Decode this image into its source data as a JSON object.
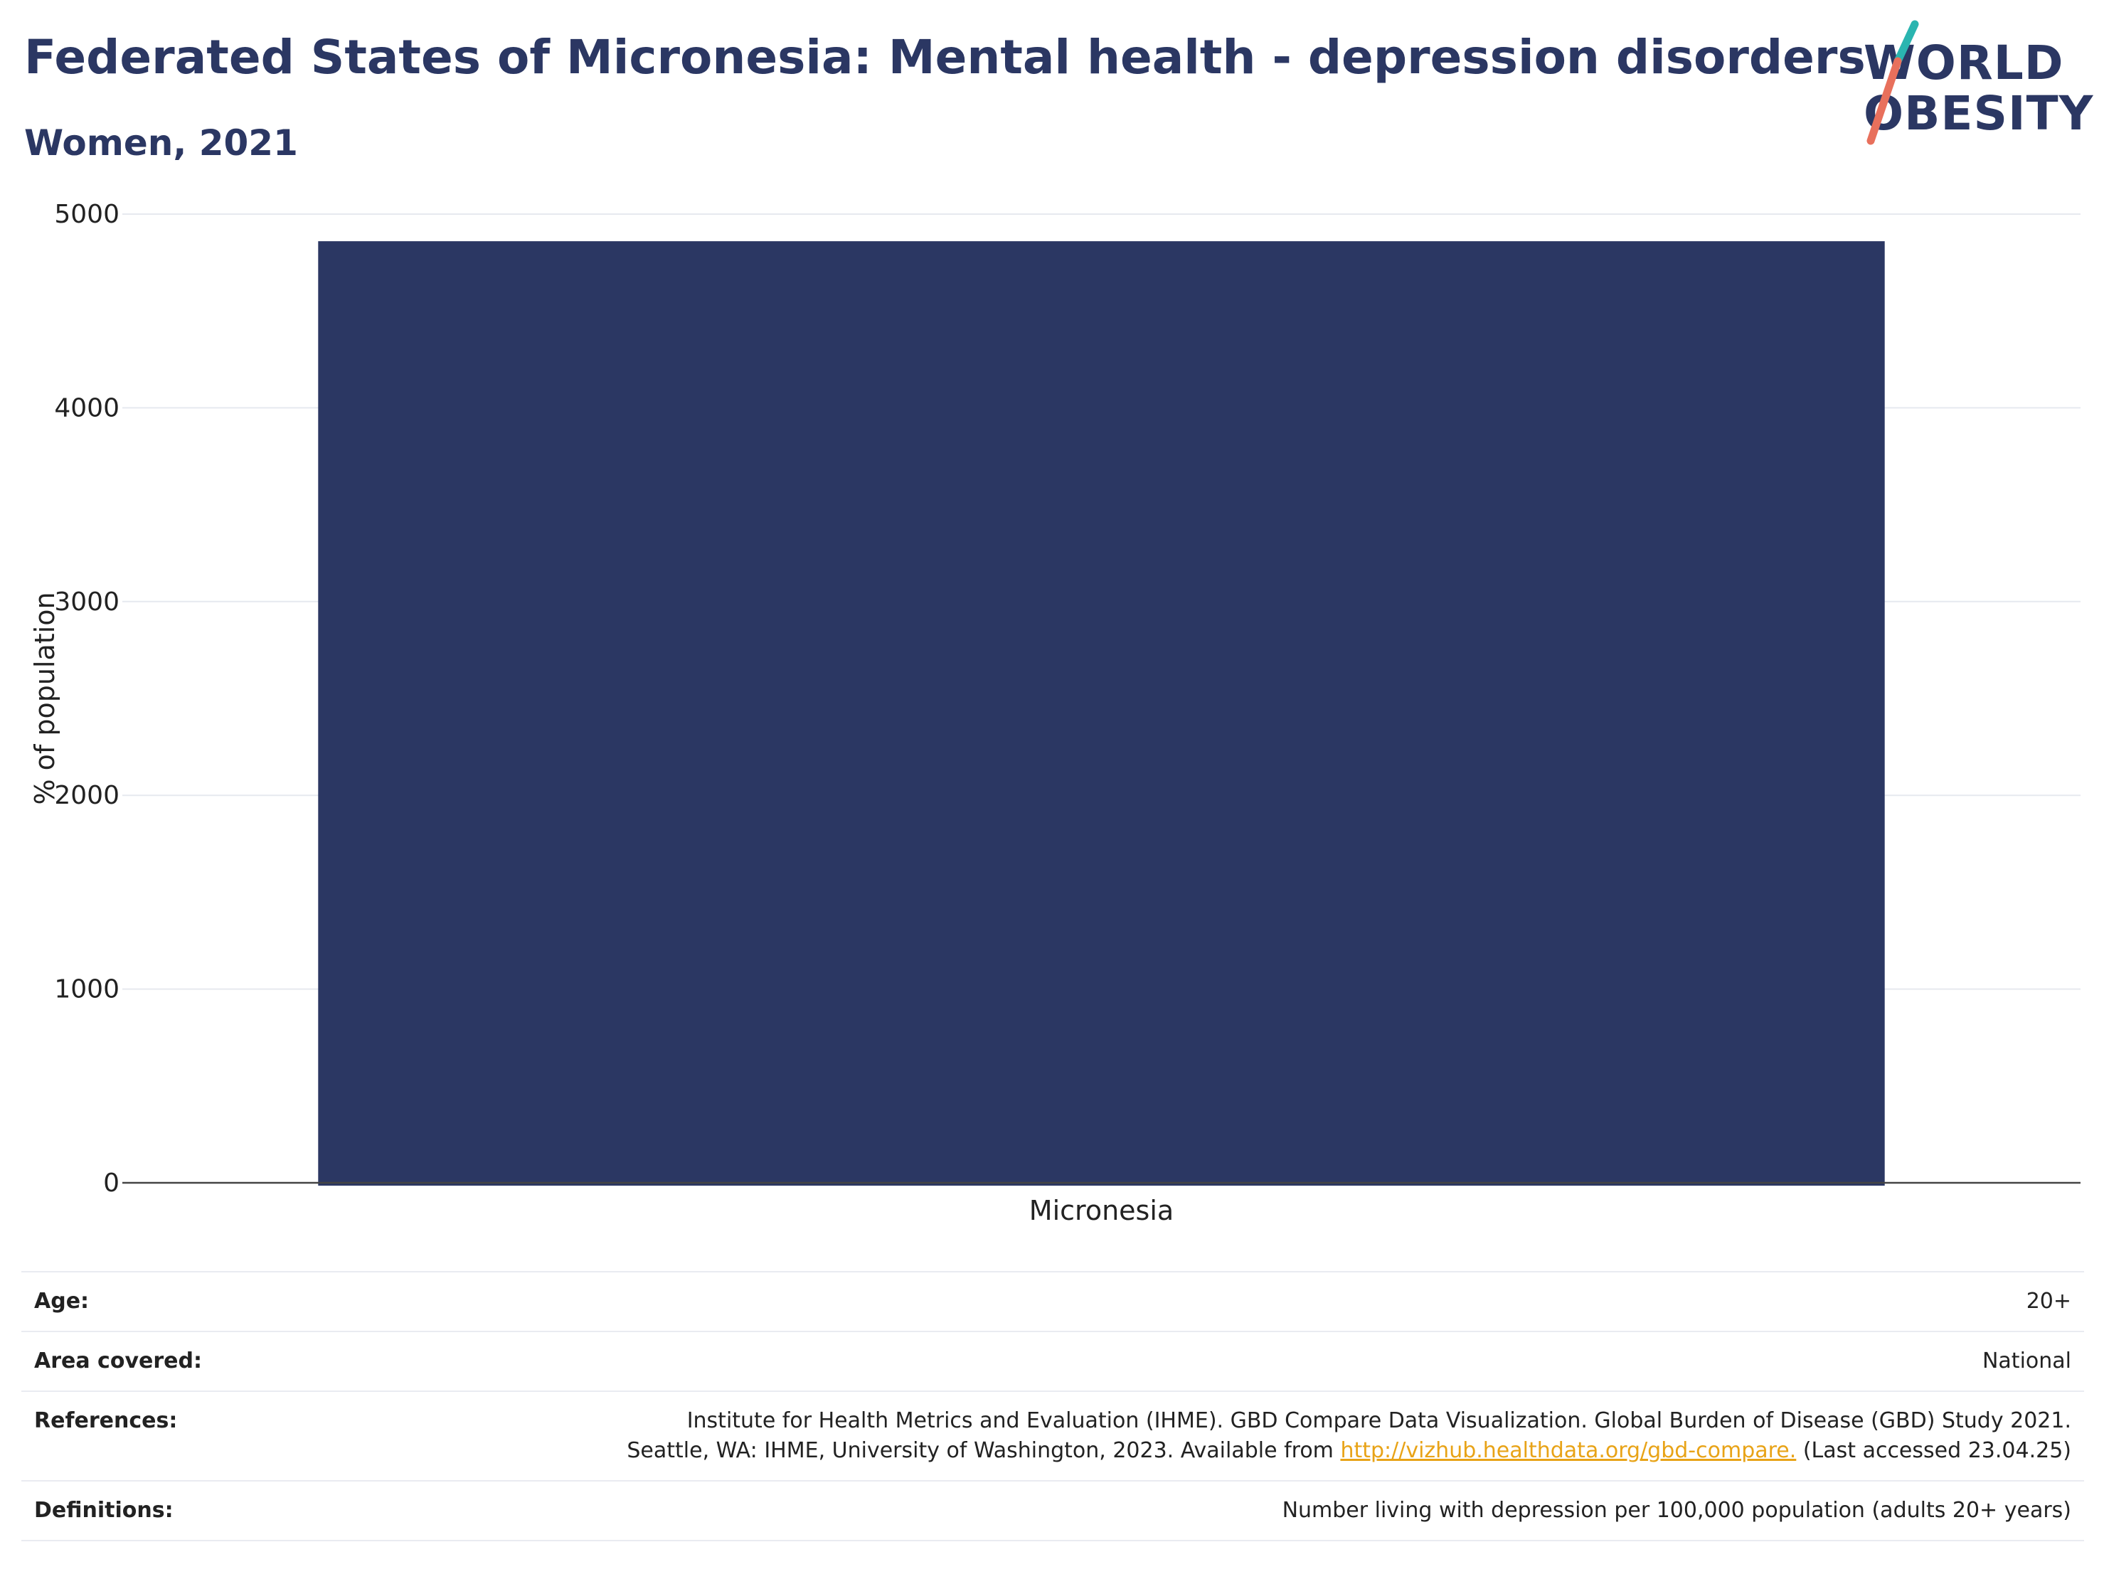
{
  "header": {
    "title": "Federated States of Micronesia: Mental health - depression disorders",
    "subtitle": "Women, 2021"
  },
  "logo": {
    "line1": "WORLD",
    "line2": "OBESITY",
    "colors": {
      "text": "#2b3763",
      "slash_top": "#2ab5b0",
      "slash_bottom": "#e8705c"
    }
  },
  "chart_data": {
    "type": "bar",
    "categories": [
      "Micronesia"
    ],
    "values": [
      4860
    ],
    "title": "",
    "xlabel": "",
    "ylabel": "% of population",
    "ylim": [
      0,
      5000
    ],
    "yticks": [
      0,
      1000,
      2000,
      3000,
      4000,
      5000
    ],
    "grid": true,
    "bar_color": "#2b3763"
  },
  "meta": {
    "age": {
      "label": "Age:",
      "value": "20+"
    },
    "area": {
      "label": "Area covered:",
      "value": "National"
    },
    "references": {
      "label": "References:",
      "line1": "Institute for Health Metrics and Evaluation (IHME). GBD Compare Data Visualization. Global Burden of Disease (GBD) Study 2021.",
      "line2_before": "Seattle, WA: IHME, University of Washington, 2023. Available from ",
      "link": "http://vizhub.healthdata.org/gbd-compare.",
      "line2_after": " (Last accessed 23.04.25)"
    },
    "definitions": {
      "label": "Definitions:",
      "value": "Number living with depression per 100,000 population (adults 20+ years)"
    }
  }
}
